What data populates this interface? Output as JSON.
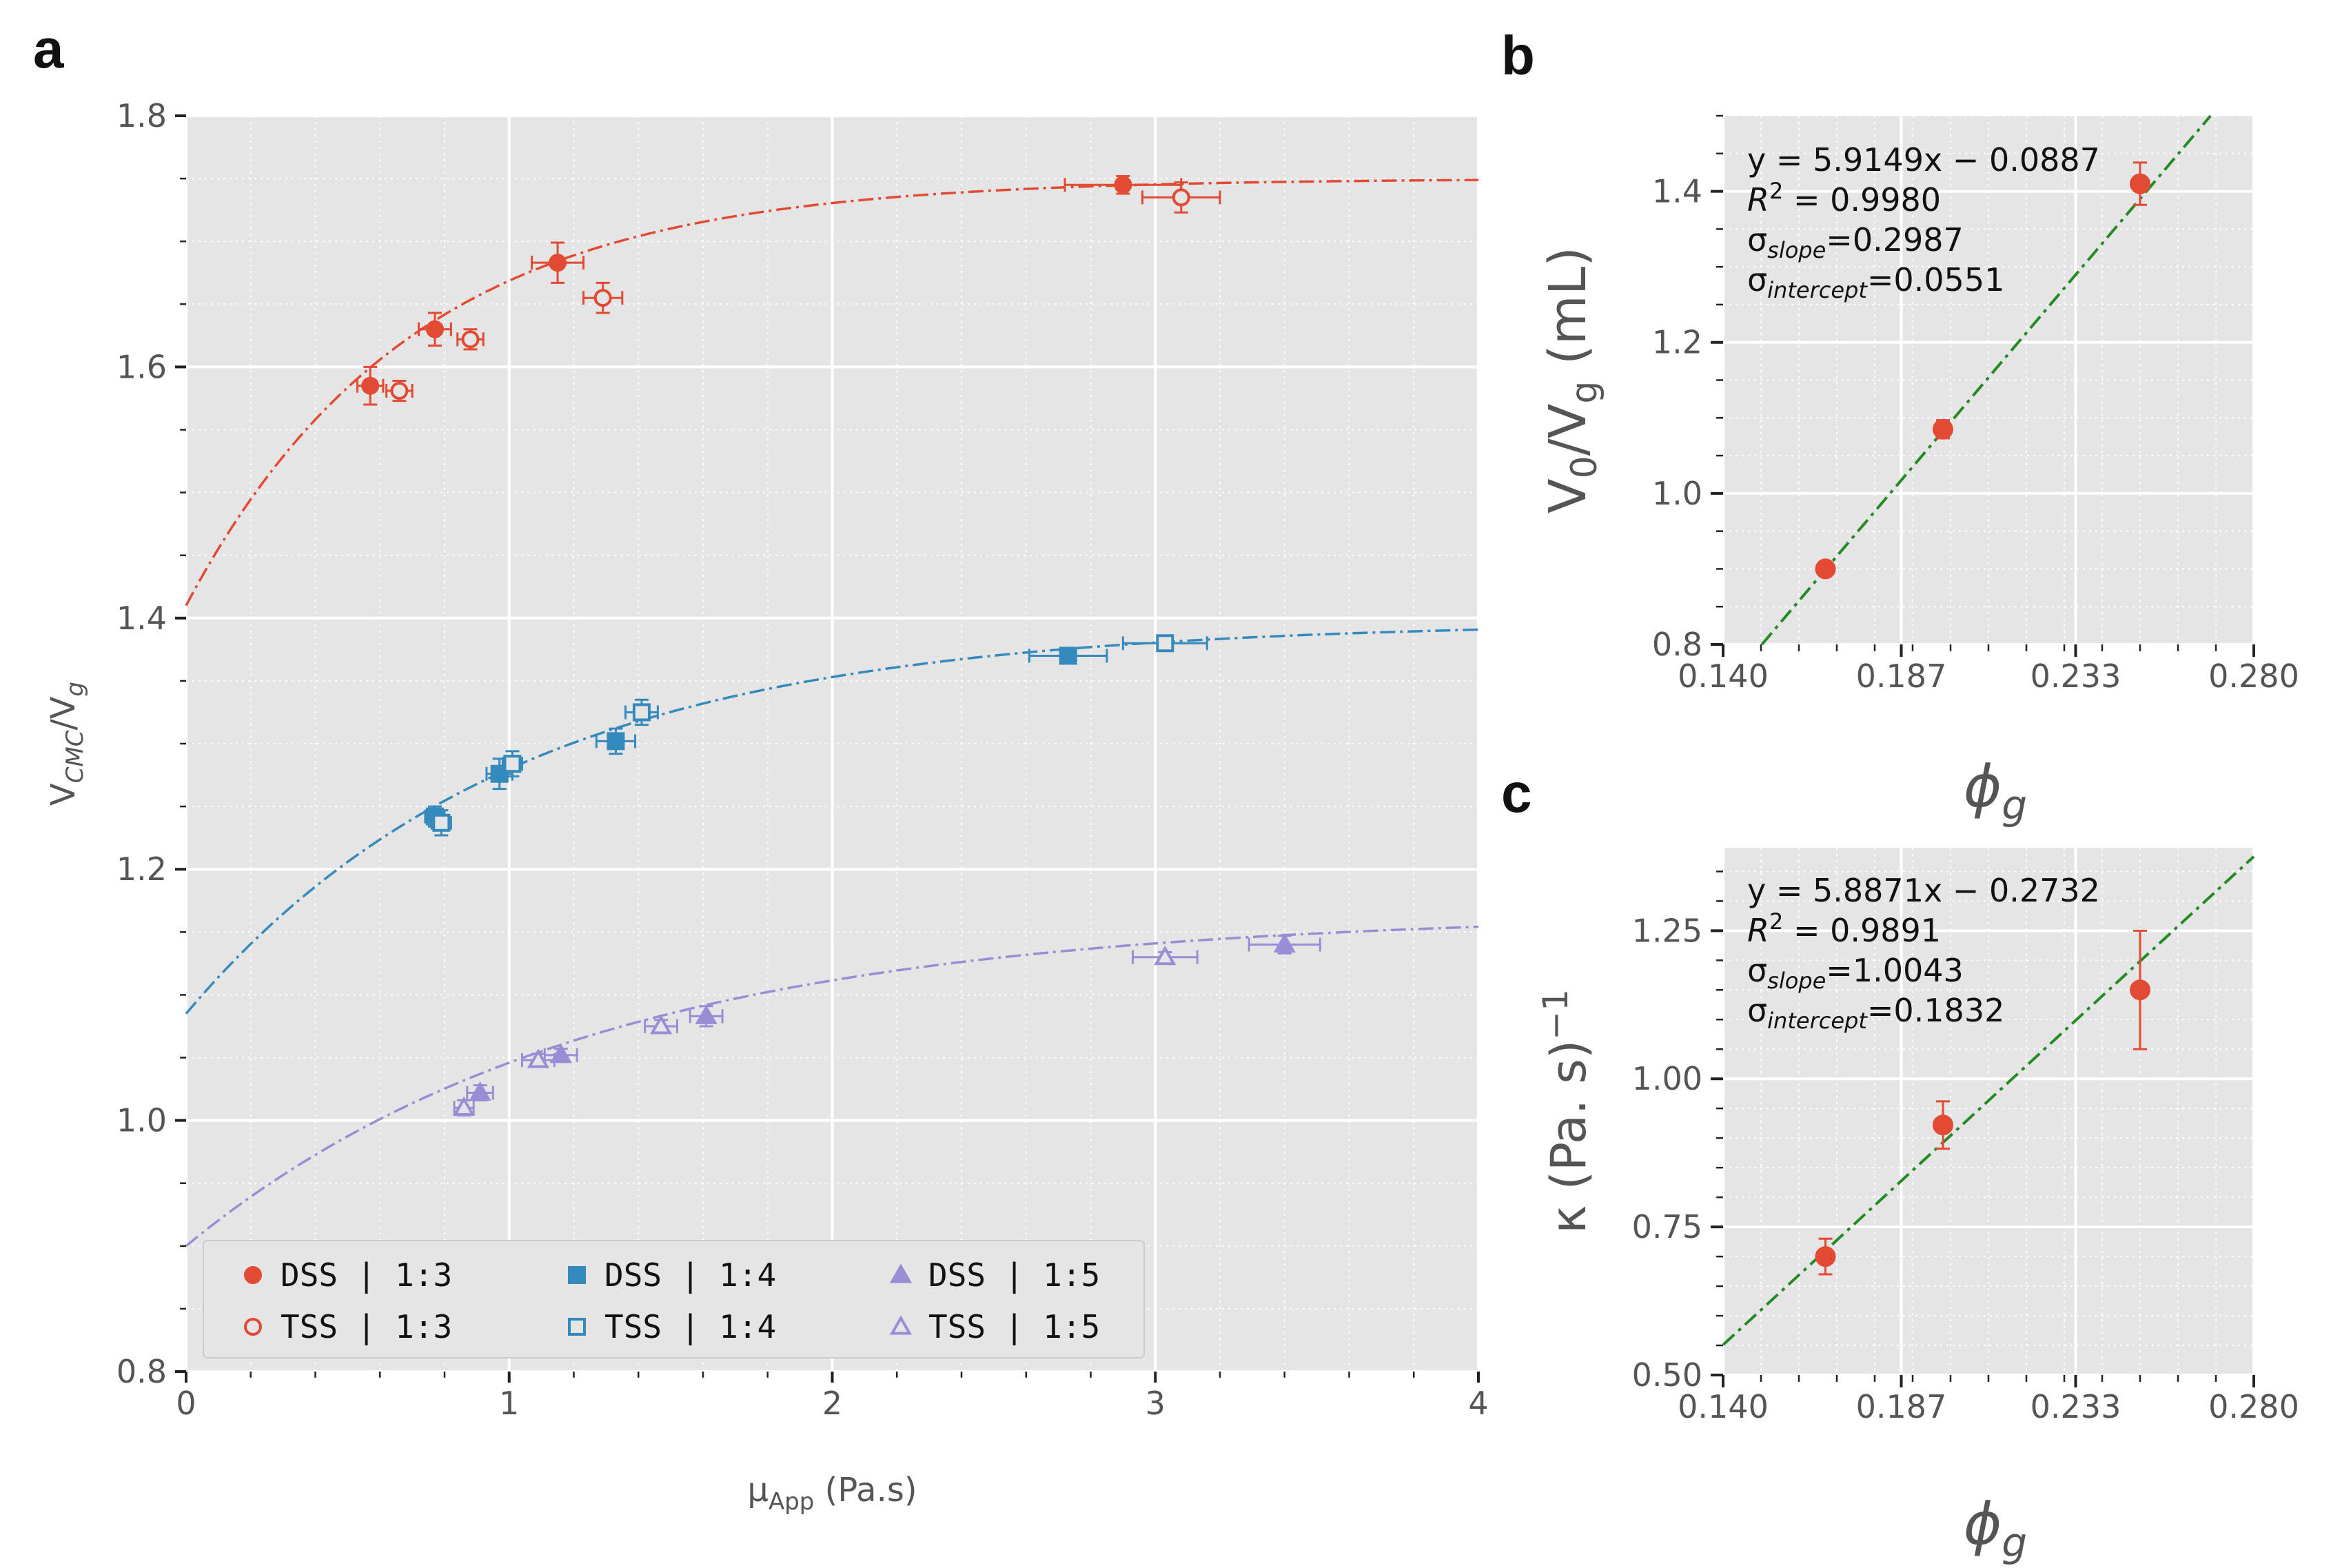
{
  "colors": {
    "panel_bg": "#e5e5e5",
    "grid_major": "#ffffff",
    "grid_minor": "#ffffff",
    "red": "#e24a33",
    "blue": "#348abd",
    "purple": "#988ed5",
    "green_fit": "#228b22"
  },
  "chart_data": [
    {
      "id": "a",
      "panel_letter": "a",
      "type": "scatter",
      "xlabel_main": "μ",
      "xlabel_sub": "App",
      "xlabel_units": " (Pa.s)",
      "ylabel_main": "V",
      "ylabel_sub": "CMC",
      "ylabel_tail": "/V",
      "ylabel_tail_sub": "g",
      "xlim": [
        0,
        4
      ],
      "ylim": [
        0.8,
        1.8
      ],
      "xticks": [
        0,
        1,
        2,
        3,
        4
      ],
      "xtick_labels": [
        "0",
        "1",
        "2",
        "3",
        "4"
      ],
      "yticks": [
        0.8,
        1.0,
        1.2,
        1.4,
        1.6,
        1.8
      ],
      "ytick_labels": [
        "0.8",
        "1.0",
        "1.2",
        "1.4",
        "1.6",
        "1.8"
      ],
      "x_minor_step": 0.2,
      "y_minor_step": 0.05,
      "series": [
        {
          "name": "DSS | 1:3",
          "label_left": "DSS",
          "label_right": "1:3",
          "color": "red",
          "marker": "circle",
          "filled": true,
          "points": [
            {
              "x": 0.57,
              "y": 1.585,
              "xerr": 0.04,
              "yerr": 0.015
            },
            {
              "x": 0.77,
              "y": 1.63,
              "xerr": 0.05,
              "yerr": 0.013
            },
            {
              "x": 1.15,
              "y": 1.683,
              "xerr": 0.08,
              "yerr": 0.016
            },
            {
              "x": 2.9,
              "y": 1.745,
              "xerr": 0.18,
              "yerr": 0.007
            }
          ]
        },
        {
          "name": "TSS | 1:3",
          "label_left": "TSS",
          "label_right": "1:3",
          "color": "red",
          "marker": "circle",
          "filled": false,
          "points": [
            {
              "x": 0.66,
              "y": 1.581,
              "xerr": 0.04,
              "yerr": 0.008
            },
            {
              "x": 0.88,
              "y": 1.622,
              "xerr": 0.04,
              "yerr": 0.008
            },
            {
              "x": 1.29,
              "y": 1.655,
              "xerr": 0.06,
              "yerr": 0.012
            },
            {
              "x": 3.08,
              "y": 1.735,
              "xerr": 0.12,
              "yerr": 0.012
            }
          ]
        },
        {
          "name": "DSS | 1:4",
          "label_left": "DSS",
          "label_right": "1:4",
          "color": "blue",
          "marker": "square",
          "filled": true,
          "points": [
            {
              "x": 0.77,
              "y": 1.242,
              "xerr": 0.03,
              "yerr": 0.008
            },
            {
              "x": 0.97,
              "y": 1.276,
              "xerr": 0.04,
              "yerr": 0.012
            },
            {
              "x": 1.33,
              "y": 1.302,
              "xerr": 0.06,
              "yerr": 0.01
            },
            {
              "x": 2.73,
              "y": 1.37,
              "xerr": 0.12,
              "yerr": 0.006
            }
          ]
        },
        {
          "name": "TSS | 1:4",
          "label_left": "TSS",
          "label_right": "1:4",
          "color": "blue",
          "marker": "square",
          "filled": false,
          "points": [
            {
              "x": 0.79,
              "y": 1.237,
              "xerr": 0.03,
              "yerr": 0.01
            },
            {
              "x": 1.01,
              "y": 1.284,
              "xerr": 0.03,
              "yerr": 0.01
            },
            {
              "x": 1.41,
              "y": 1.325,
              "xerr": 0.05,
              "yerr": 0.01
            },
            {
              "x": 3.03,
              "y": 1.38,
              "xerr": 0.13,
              "yerr": 0.006
            }
          ]
        },
        {
          "name": "DSS | 1:5",
          "label_left": "DSS",
          "label_right": "1:5",
          "color": "purple",
          "marker": "triangle",
          "filled": true,
          "points": [
            {
              "x": 0.91,
              "y": 1.022,
              "xerr": 0.04,
              "yerr": 0.006
            },
            {
              "x": 1.16,
              "y": 1.052,
              "xerr": 0.05,
              "yerr": 0.005
            },
            {
              "x": 1.61,
              "y": 1.083,
              "xerr": 0.05,
              "yerr": 0.008
            },
            {
              "x": 3.4,
              "y": 1.14,
              "xerr": 0.11,
              "yerr": 0.007
            }
          ]
        },
        {
          "name": "TSS | 1:5",
          "label_left": "TSS",
          "label_right": "1:5",
          "color": "purple",
          "marker": "triangle",
          "filled": false,
          "points": [
            {
              "x": 0.86,
              "y": 1.01,
              "xerr": 0.03,
              "yerr": 0.006
            },
            {
              "x": 1.09,
              "y": 1.048,
              "xerr": 0.05,
              "yerr": 0.005
            },
            {
              "x": 1.47,
              "y": 1.075,
              "xerr": 0.05,
              "yerr": 0.005
            },
            {
              "x": 3.03,
              "y": 1.13,
              "xerr": 0.1,
              "yerr": 0.004
            }
          ]
        }
      ],
      "fit_curves": [
        {
          "color": "red",
          "a": 1.75,
          "b": 0.34,
          "k": 1.43
        },
        {
          "color": "blue",
          "a": 1.397,
          "b": 0.312,
          "k": 0.98
        },
        {
          "color": "purple",
          "a": 1.165,
          "b": 0.265,
          "k": 0.8
        }
      ],
      "legend_position": "lower-left"
    },
    {
      "id": "b",
      "panel_letter": "b",
      "type": "scatter",
      "ylabel_main": "V",
      "ylabel_sub": "0",
      "ylabel_tail": "/V",
      "ylabel_tail_sub": "g",
      "ylabel_units": " (mL)",
      "xlabel": "ϕ",
      "xlabel_sub": "g",
      "xlim": [
        0.14,
        0.28
      ],
      "ylim": [
        0.8,
        1.5
      ],
      "xticks": [
        0.14,
        0.187,
        0.233,
        0.28
      ],
      "xtick_labels": [
        "0.140",
        "0.187",
        "0.233",
        "0.280"
      ],
      "yticks": [
        0.8,
        1.0,
        1.2,
        1.4
      ],
      "ytick_labels": [
        "0.8",
        "1.0",
        "1.2",
        "1.4"
      ],
      "x_minor_step": 0.01,
      "y_minor_step": 0.05,
      "points": [
        {
          "x": 0.167,
          "y": 0.9,
          "yerr": 0.008
        },
        {
          "x": 0.198,
          "y": 1.085,
          "yerr": 0.012
        },
        {
          "x": 0.25,
          "y": 1.41,
          "yerr": 0.028
        }
      ],
      "fit": {
        "slope": 5.9149,
        "intercept": -0.0887
      },
      "annotation": {
        "line1": "y = 5.9149x − 0.0887",
        "r2_label": "R",
        "r2_sup": "2",
        "r2_value": " = 0.9980",
        "sigma_slope_label": "σ",
        "sigma_slope_sub": "slope",
        "sigma_slope_value": "=0.2987",
        "sigma_intercept_label": "σ",
        "sigma_intercept_sub": "intercept",
        "sigma_intercept_value": "=0.0551"
      }
    },
    {
      "id": "c",
      "panel_letter": "c",
      "type": "scatter",
      "ylabel_main": "κ (Pa. s)",
      "ylabel_sup": "−1",
      "xlabel": "ϕ",
      "xlabel_sub": "g",
      "xlim": [
        0.14,
        0.28
      ],
      "ylim": [
        0.5,
        1.39
      ],
      "xticks": [
        0.14,
        0.187,
        0.233,
        0.28
      ],
      "xtick_labels": [
        "0.140",
        "0.187",
        "0.233",
        "0.280"
      ],
      "yticks": [
        0.5,
        0.75,
        1.0,
        1.25
      ],
      "ytick_labels": [
        "0.50",
        "0.75",
        "1.00",
        "1.25"
      ],
      "x_minor_step": 0.01,
      "y_minor_step": 0.05,
      "points": [
        {
          "x": 0.167,
          "y": 0.7,
          "yerr": 0.03
        },
        {
          "x": 0.198,
          "y": 0.922,
          "yerr": 0.04
        },
        {
          "x": 0.25,
          "y": 1.15,
          "yerr": 0.1
        }
      ],
      "fit": {
        "slope": 5.8871,
        "intercept": -0.2732
      },
      "annotation": {
        "line1": "y = 5.8871x − 0.2732",
        "r2_label": "R",
        "r2_sup": "2",
        "r2_value": " = 0.9891",
        "sigma_slope_label": "σ",
        "sigma_slope_sub": "slope",
        "sigma_slope_value": "=1.0043",
        "sigma_intercept_label": "σ",
        "sigma_intercept_sub": "intercept",
        "sigma_intercept_value": "=0.1832"
      }
    }
  ]
}
